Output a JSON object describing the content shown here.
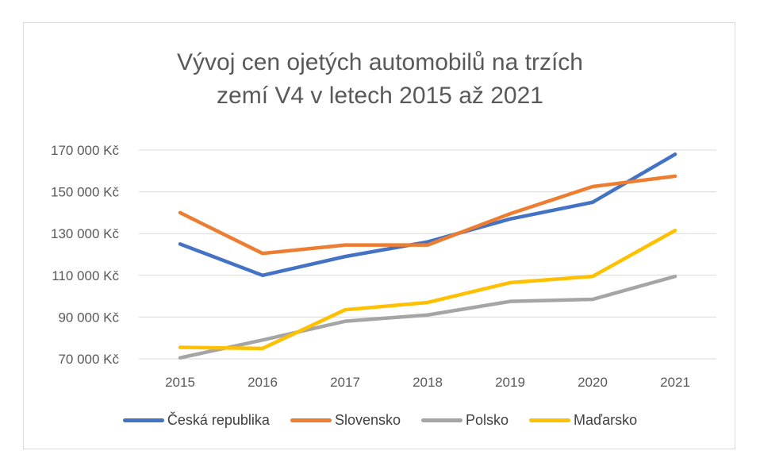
{
  "chart_data": {
    "type": "line",
    "title_lines": [
      "Vývoj cen ojetých automobilů na trzích",
      "zemí V4 v letech 2015 až 2021"
    ],
    "categories": [
      "2015",
      "2016",
      "2017",
      "2018",
      "2019",
      "2020",
      "2021"
    ],
    "y_ticks": [
      70000,
      90000,
      110000,
      130000,
      150000,
      170000
    ],
    "y_tick_labels": [
      "70 000 Kč",
      "90 000 Kč",
      "110 000 Kč",
      "130 000 Kč",
      "150 000 Kč",
      "170 000 Kč"
    ],
    "ylim": [
      70000,
      170000
    ],
    "grid": true,
    "legend_position": "bottom",
    "series": [
      {
        "name": "Česká republika",
        "color": "#4472c4",
        "values": [
          125000,
          110000,
          119000,
          126000,
          137000,
          145000,
          168000
        ]
      },
      {
        "name": "Slovensko",
        "color": "#ed7d31",
        "values": [
          140000,
          120500,
          124500,
          124500,
          139500,
          152500,
          157500
        ]
      },
      {
        "name": "Polsko",
        "color": "#a5a5a5",
        "values": [
          70500,
          79000,
          88000,
          91000,
          97500,
          98500,
          109500
        ]
      },
      {
        "name": "Maďarsko",
        "color": "#ffc000",
        "values": [
          75500,
          75000,
          93500,
          97000,
          106500,
          109500,
          131500
        ]
      }
    ]
  }
}
